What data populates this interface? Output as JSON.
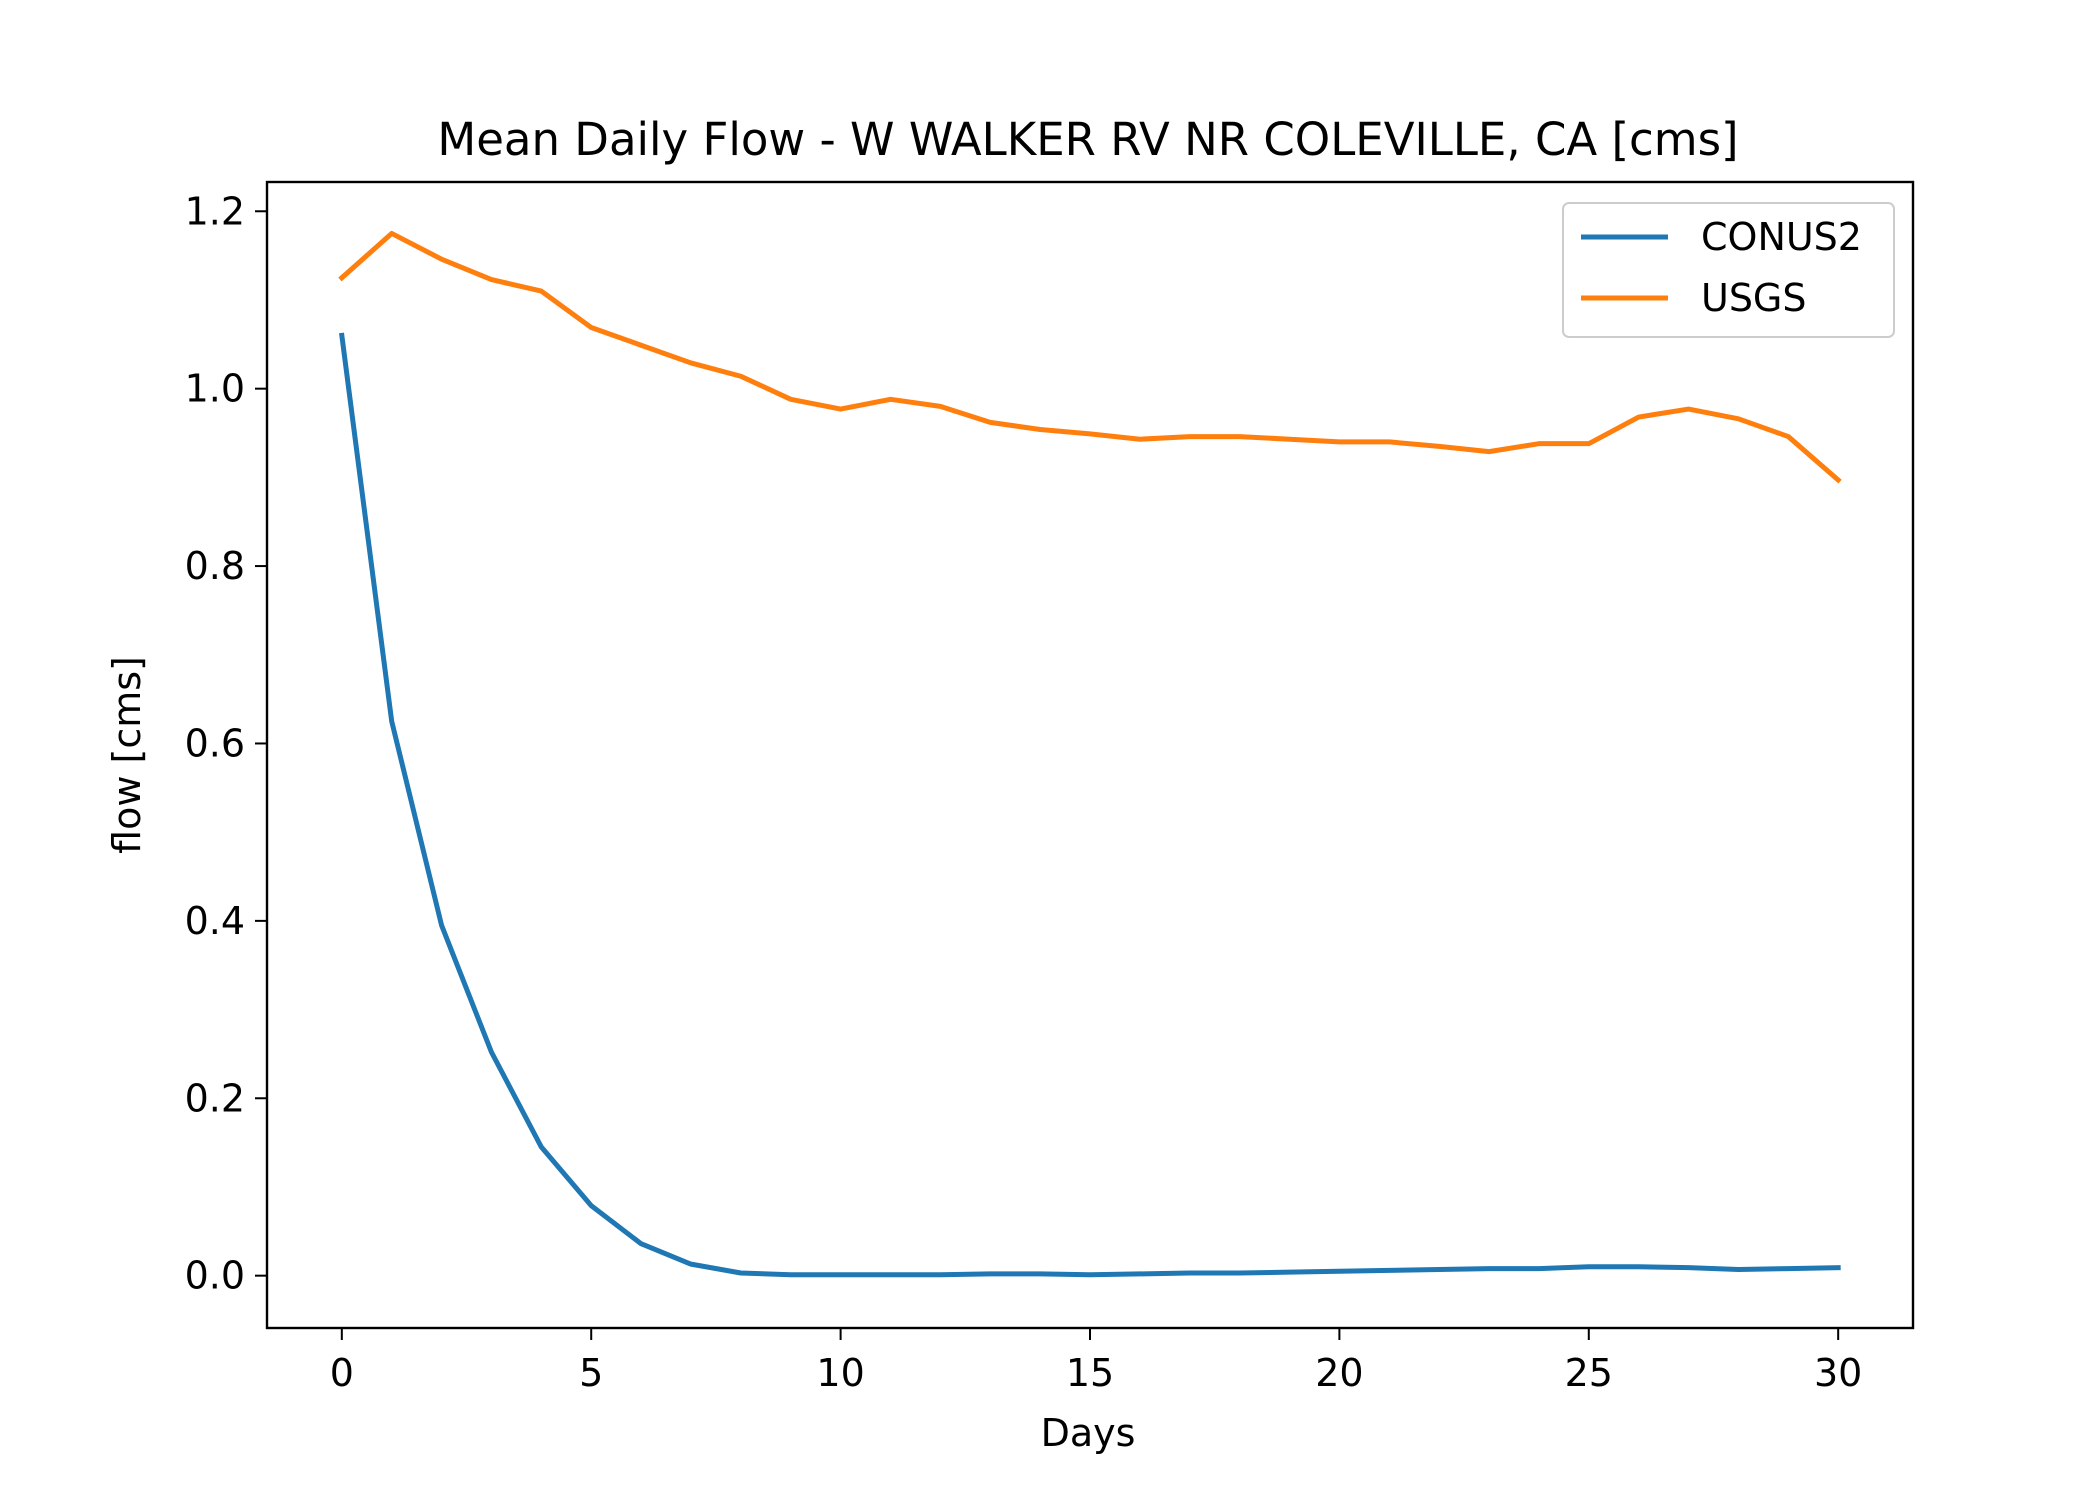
{
  "chart_data": {
    "type": "line",
    "title": "Mean Daily Flow - W WALKER RV NR COLEVILLE, CA [cms]",
    "xlabel": "Days",
    "ylabel": "flow [cms]",
    "xlim": [
      -1.5,
      31.5
    ],
    "ylim": [
      -0.059,
      1.233
    ],
    "xticks": [
      0,
      5,
      10,
      15,
      20,
      25,
      30
    ],
    "xtick_labels": [
      "0",
      "5",
      "10",
      "15",
      "20",
      "25",
      "30"
    ],
    "yticks": [
      0.0,
      0.2,
      0.4,
      0.6,
      0.8,
      1.0,
      1.2
    ],
    "ytick_labels": [
      "0.0",
      "0.2",
      "0.4",
      "0.6",
      "0.8",
      "1.0",
      "1.2"
    ],
    "grid": false,
    "legend_position": "top-right",
    "x": [
      0,
      1,
      2,
      3,
      4,
      5,
      6,
      7,
      8,
      9,
      10,
      11,
      12,
      13,
      14,
      15,
      16,
      17,
      18,
      19,
      20,
      21,
      22,
      23,
      24,
      25,
      26,
      27,
      28,
      29,
      30
    ],
    "series": [
      {
        "name": "CONUS2",
        "color": "#1f77b4",
        "values": [
          1.06,
          0.625,
          0.395,
          0.252,
          0.145,
          0.079,
          0.036,
          0.013,
          0.003,
          0.001,
          0.001,
          0.001,
          0.001,
          0.002,
          0.002,
          0.001,
          0.002,
          0.003,
          0.003,
          0.004,
          0.005,
          0.006,
          0.007,
          0.008,
          0.008,
          0.01,
          0.01,
          0.009,
          0.007,
          0.008,
          0.009
        ]
      },
      {
        "name": "USGS",
        "color": "#ff7f0e",
        "values": [
          1.125,
          1.175,
          1.146,
          1.123,
          1.11,
          1.069,
          1.049,
          1.029,
          1.014,
          0.988,
          0.977,
          0.988,
          0.98,
          0.962,
          0.954,
          0.949,
          0.943,
          0.946,
          0.946,
          0.943,
          0.94,
          0.94,
          0.935,
          0.929,
          0.938,
          0.938,
          0.968,
          0.977,
          0.966,
          0.946,
          0.897
        ]
      }
    ]
  }
}
